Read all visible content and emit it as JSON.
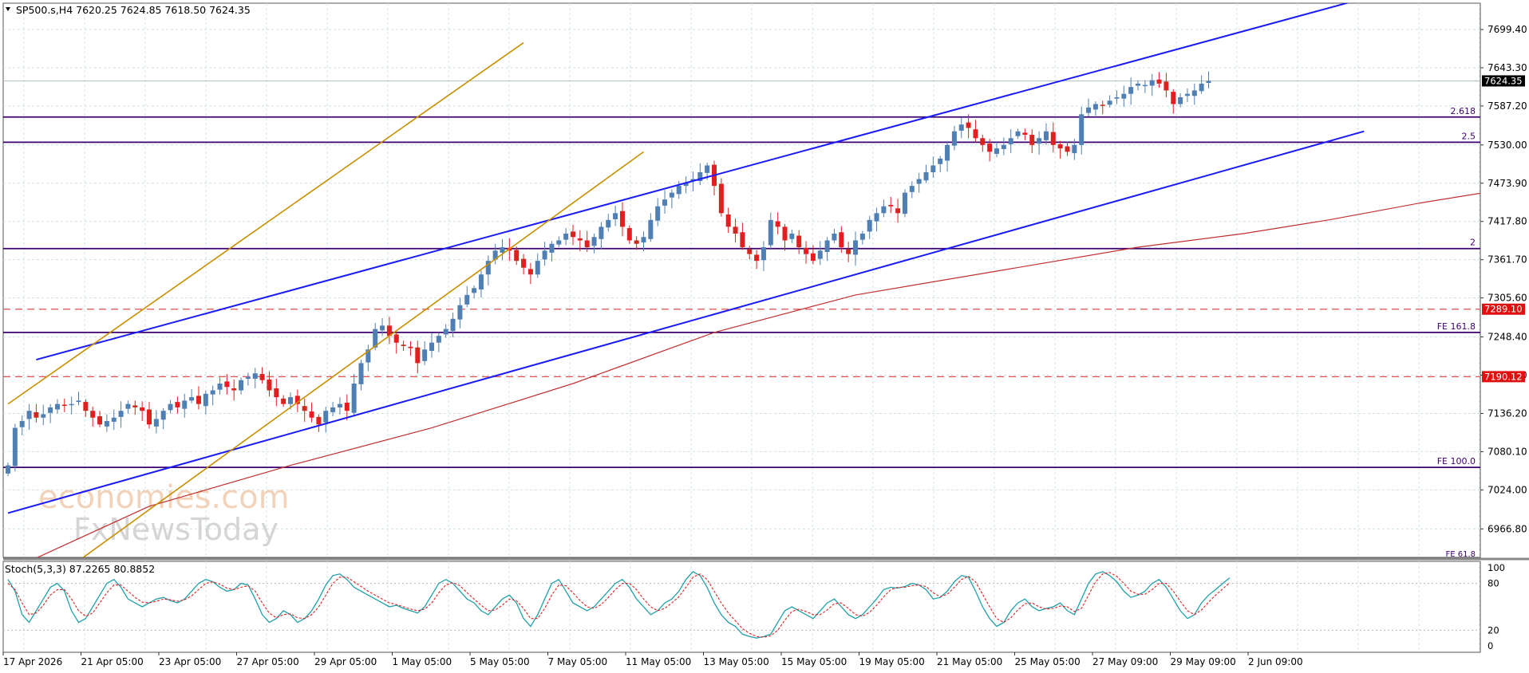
{
  "header": {
    "symbol_line": "SP500.s,H4  7620.25 7624.85 7618.50 7624.35"
  },
  "watermark": {
    "line1": "economies.com",
    "line2": "FxNewsToday"
  },
  "colors": {
    "bull": "#4f7fb3",
    "bear": "#e02020",
    "channel": "#1a1aff",
    "gold": "#c89000",
    "level": "#3d0070",
    "dashed": "#e05050",
    "ma": "#c03030",
    "stoch_main": "#20a0a8",
    "stoch_signal": "#e02020",
    "grid": "#cfe0e0"
  },
  "chart_data": [
    {
      "type": "candlestick",
      "title": "SP500.s,H4",
      "ohlc_last": {
        "open": 7620.25,
        "high": 7624.85,
        "low": 7618.5,
        "close": 7624.35
      },
      "ylim": [
        6925,
        7738
      ],
      "y_ticks": [
        "7699.40",
        "7643.30",
        "7587.20",
        "7530.00",
        "7473.90",
        "7417.80",
        "7361.70",
        "7305.60",
        "7248.40",
        "7192.30",
        "7136.20",
        "7080.10",
        "7024.00",
        "6966.80"
      ],
      "x_ticks": [
        "17 Apr 2026",
        "21 Apr 05:00",
        "23 Apr 05:00",
        "27 Apr 05:00",
        "29 Apr 05:00",
        "1 May 05:00",
        "5 May 05:00",
        "7 May 05:00",
        "11 May 05:00",
        "13 May 05:00",
        "15 May 05:00",
        "19 May 05:00",
        "21 May 05:00",
        "25 May 05:00",
        "27 May 09:00",
        "29 May 09:00",
        "2 Jun 09:00"
      ],
      "price_tag": "7624.35",
      "closes": [
        7060,
        7115,
        7125,
        7140,
        7130,
        7135,
        7145,
        7150,
        7148,
        7150,
        7155,
        7140,
        7130,
        7120,
        7125,
        7130,
        7140,
        7150,
        7145,
        7140,
        7120,
        7128,
        7140,
        7150,
        7145,
        7155,
        7160,
        7150,
        7165,
        7170,
        7180,
        7175,
        7170,
        7185,
        7190,
        7195,
        7185,
        7170,
        7160,
        7150,
        7160,
        7150,
        7140,
        7130,
        7120,
        7140,
        7145,
        7150,
        7140,
        7180,
        7210,
        7230,
        7260,
        7265,
        7250,
        7240,
        7235,
        7232,
        7210,
        7230,
        7240,
        7250,
        7260,
        7275,
        7295,
        7310,
        7320,
        7340,
        7360,
        7375,
        7380,
        7375,
        7360,
        7350,
        7340,
        7360,
        7375,
        7385,
        7390,
        7400,
        7395,
        7390,
        7380,
        7395,
        7410,
        7420,
        7430,
        7410,
        7390,
        7385,
        7395,
        7420,
        7440,
        7450,
        7460,
        7470,
        7475,
        7480,
        7490,
        7500,
        7470,
        7430,
        7410,
        7400,
        7380,
        7370,
        7360,
        7380,
        7420,
        7410,
        7390,
        7400,
        7380,
        7370,
        7360,
        7375,
        7390,
        7400,
        7380,
        7370,
        7390,
        7400,
        7420,
        7430,
        7440,
        7440,
        7430,
        7460,
        7470,
        7480,
        7490,
        7500,
        7510,
        7530,
        7550,
        7560,
        7555,
        7540,
        7530,
        7520,
        7525,
        7530,
        7540,
        7550,
        7545,
        7530,
        7540,
        7550,
        7530,
        7525,
        7520,
        7530,
        7575,
        7585,
        7590,
        7588,
        7595,
        7600,
        7605,
        7615,
        7620,
        7618,
        7625,
        7620,
        7610,
        7590,
        7600,
        7605,
        7610,
        7620,
        7624
      ],
      "ma_points": [
        [
          0,
          6905
        ],
        [
          20,
          7000
        ],
        [
          40,
          7060
        ],
        [
          60,
          7115
        ],
        [
          80,
          7180
        ],
        [
          100,
          7255
        ],
        [
          120,
          7310
        ],
        [
          140,
          7345
        ],
        [
          160,
          7380
        ],
        [
          175,
          7400
        ],
        [
          187,
          7420
        ],
        [
          200,
          7445
        ],
        [
          215,
          7470
        ]
      ],
      "channel_lines": [
        {
          "from": [
            0,
            6990
          ],
          "to": [
            192,
            7550
          ]
        },
        {
          "from": [
            4,
            7215
          ],
          "to": [
            192,
            7745
          ]
        }
      ],
      "gold_lines": [
        {
          "from": [
            0,
            7150
          ],
          "to": [
            73,
            7680
          ]
        },
        {
          "from": [
            10,
            6920
          ],
          "to": [
            90,
            7520
          ]
        }
      ],
      "levels": [
        {
          "value": 7571,
          "label": "2.618",
          "style": "solid"
        },
        {
          "value": 7534,
          "label": "2.5",
          "style": "solid"
        },
        {
          "value": 7378,
          "label": "2",
          "style": "solid"
        },
        {
          "value": 7289.1,
          "label": "",
          "tag": "7289.10",
          "style": "dashed"
        },
        {
          "value": 7255,
          "label": "FE 161.8",
          "style": "solid"
        },
        {
          "value": 7190.12,
          "label": "",
          "tag": "7190.12",
          "style": "dashed"
        },
        {
          "value": 7057,
          "label": "FE 100.0",
          "style": "solid"
        }
      ],
      "cut_label": "FE 61.8"
    },
    {
      "type": "line",
      "title": "Stoch(5,3,3) 87.2265 80.8852",
      "ylim": [
        0,
        100
      ],
      "y_ticks": [
        "100",
        "80",
        "20",
        "0"
      ],
      "series": [
        {
          "values": [
            85,
            70,
            40,
            30,
            45,
            60,
            75,
            80,
            70,
            45,
            30,
            35,
            50,
            65,
            80,
            85,
            75,
            60,
            55,
            50,
            55,
            60,
            62,
            58,
            55,
            60,
            70,
            80,
            85,
            82,
            75,
            70,
            72,
            80,
            78,
            60,
            40,
            30,
            35,
            45,
            40,
            30,
            35,
            45,
            60,
            78,
            90,
            92,
            85,
            75,
            70,
            65,
            60,
            55,
            50,
            52,
            48,
            45,
            42,
            50,
            65,
            80,
            85,
            80,
            70,
            60,
            55,
            45,
            40,
            50,
            60,
            65,
            55,
            35,
            25,
            40,
            60,
            80,
            85,
            70,
            55,
            50,
            45,
            50,
            60,
            70,
            80,
            85,
            75,
            60,
            50,
            40,
            45,
            55,
            60,
            70,
            85,
            95,
            90,
            75,
            55,
            40,
            30,
            25,
            15,
            12,
            10,
            12,
            15,
            30,
            45,
            50,
            45,
            40,
            35,
            45,
            55,
            60,
            50,
            40,
            35,
            40,
            50,
            60,
            72,
            75,
            74,
            76,
            80,
            78,
            72,
            60,
            62,
            70,
            82,
            90,
            88,
            70,
            50,
            35,
            25,
            30,
            45,
            55,
            60,
            50,
            45,
            48,
            50,
            55,
            45,
            40,
            60,
            80,
            92,
            95,
            90,
            82,
            70,
            62,
            65,
            70,
            80,
            85,
            75,
            60,
            45,
            35,
            40,
            55,
            65,
            72,
            80,
            87
          ]
        },
        {
          "values": [
            80,
            72,
            55,
            40,
            42,
            52,
            65,
            72,
            72,
            60,
            45,
            38,
            42,
            55,
            68,
            78,
            78,
            70,
            62,
            56,
            55,
            57,
            60,
            59,
            57,
            59,
            64,
            72,
            80,
            82,
            79,
            74,
            72,
            75,
            77,
            70,
            55,
            42,
            36,
            40,
            41,
            36,
            35,
            40,
            50,
            65,
            80,
            88,
            88,
            82,
            76,
            70,
            65,
            60,
            55,
            53,
            50,
            47,
            45,
            47,
            55,
            68,
            78,
            81,
            77,
            68,
            60,
            52,
            45,
            46,
            52,
            60,
            58,
            48,
            35,
            35,
            48,
            65,
            78,
            77,
            68,
            58,
            50,
            48,
            53,
            62,
            72,
            80,
            80,
            72,
            60,
            50,
            45,
            48,
            55,
            63,
            75,
            88,
            92,
            85,
            70,
            55,
            42,
            32,
            22,
            16,
            12,
            11,
            13,
            20,
            33,
            44,
            47,
            44,
            40,
            40,
            46,
            54,
            55,
            48,
            40,
            38,
            43,
            52,
            63,
            72,
            75,
            75,
            77,
            78,
            76,
            68,
            63,
            66,
            75,
            85,
            89,
            82,
            66,
            50,
            35,
            30,
            36,
            46,
            54,
            55,
            50,
            47,
            48,
            51,
            50,
            44,
            48,
            65,
            82,
            92,
            94,
            89,
            80,
            70,
            66,
            66,
            72,
            80,
            80,
            70,
            57,
            45,
            40,
            46,
            56,
            65,
            73,
            81
          ]
        }
      ]
    }
  ]
}
